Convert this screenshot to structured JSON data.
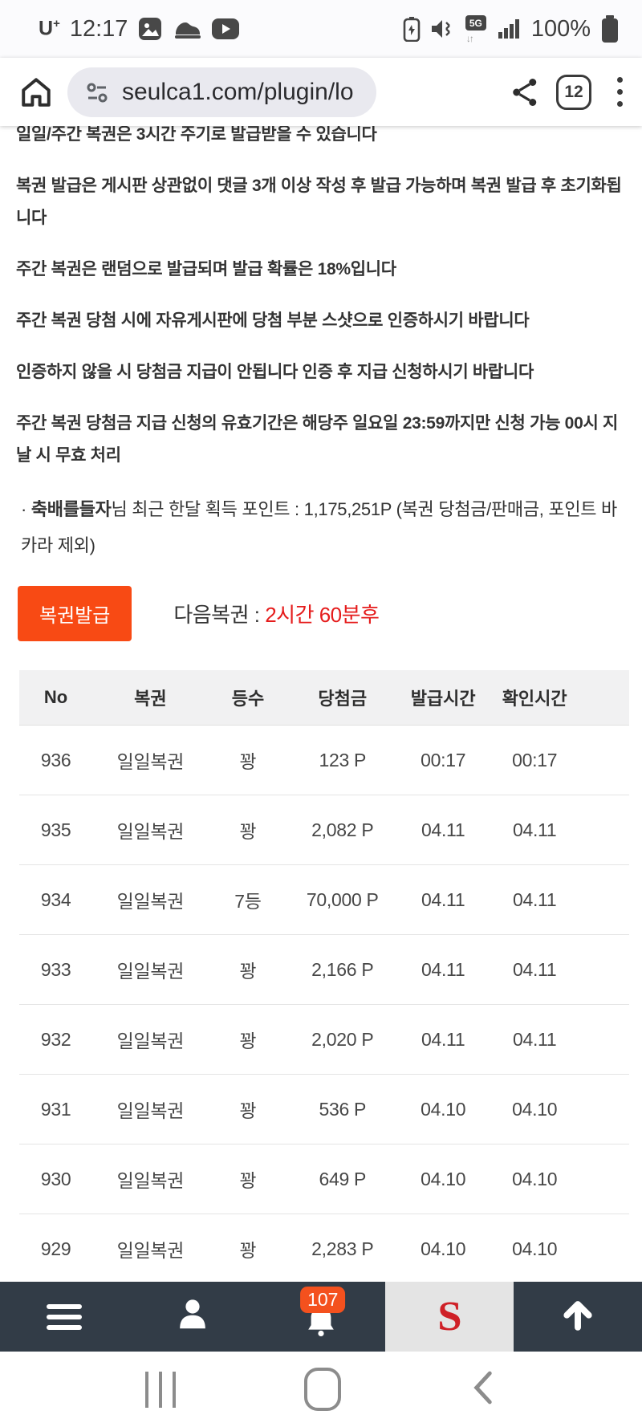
{
  "status_bar": {
    "carrier": "U",
    "carrier_plus": "+",
    "time": "12:17",
    "network_label": "5G",
    "battery_percent": "100%",
    "notification_icons": [
      "gallery-icon",
      "shoe-icon",
      "youtube-icon"
    ],
    "system_icons": [
      "battery-saver-icon",
      "mute-icon",
      "5g-icon",
      "signal-icon",
      "battery-icon"
    ]
  },
  "browser": {
    "url": "seulca1.com/plugin/lo",
    "tab_count": "12"
  },
  "content": {
    "paragraphs": [
      "일일/주간 복권은 3시간 주기로 발급받을 수 있습니다",
      "복권 발급은 게시판 상관없이 댓글 3개 이상 작성 후 발급 가능하며 복권 발급 후 초기화됩니다",
      "주간 복권은 랜덤으로 발급되며 발급 확률은 18%입니다",
      "주간 복권 당첨 시에 자유게시판에 당첨 부분 스샷으로 인증하시기 바랍니다",
      "인증하지 않을 시 당첨금 지급이 안됩니다 인증 후 지급 신청하시기 바랍니다",
      "주간 복권 당첨금 지급 신청의 유효기간은 해당주 일요일 23:59까지만 신청 가능 00시 지날 시 무효 처리"
    ],
    "points_bullet": "·",
    "points_username": "축배를들자",
    "points_suffix": "님 최근 한달 획득 포인트 : 1,175,251P (복권 당첨금/판매금, 포인트 바카라 제외)",
    "issue_button_label": "복권발급",
    "next_lottery_label": "다음복권 : ",
    "next_lottery_time": "2시간 60분후"
  },
  "table": {
    "headers": [
      "No",
      "복권",
      "등수",
      "당첨금",
      "발급시간",
      "확인시간"
    ],
    "rows": [
      [
        "936",
        "일일복권",
        "꽝",
        "123 P",
        "00:17",
        "00:17"
      ],
      [
        "935",
        "일일복권",
        "꽝",
        "2,082 P",
        "04.11",
        "04.11"
      ],
      [
        "934",
        "일일복권",
        "7등",
        "70,000 P",
        "04.11",
        "04.11"
      ],
      [
        "933",
        "일일복권",
        "꽝",
        "2,166 P",
        "04.11",
        "04.11"
      ],
      [
        "932",
        "일일복권",
        "꽝",
        "2,020 P",
        "04.11",
        "04.11"
      ],
      [
        "931",
        "일일복권",
        "꽝",
        "536 P",
        "04.10",
        "04.10"
      ],
      [
        "930",
        "일일복권",
        "꽝",
        "649 P",
        "04.10",
        "04.10"
      ],
      [
        "929",
        "일일복권",
        "꽝",
        "2,283 P",
        "04.10",
        "04.10"
      ]
    ]
  },
  "bottom_nav": {
    "notification_count": "107",
    "logo_letter": "S",
    "icons": [
      "menu-icon",
      "profile-icon",
      "bell-icon",
      "site-logo",
      "scroll-top-icon"
    ]
  },
  "colors": {
    "button_orange": "#f84a14",
    "countdown_red": "#e51c1c",
    "badge_orange": "#f4511e",
    "nav_dark": "#323c47",
    "logo_red": "#cf2027",
    "table_header_bg": "#f1f1f2"
  }
}
